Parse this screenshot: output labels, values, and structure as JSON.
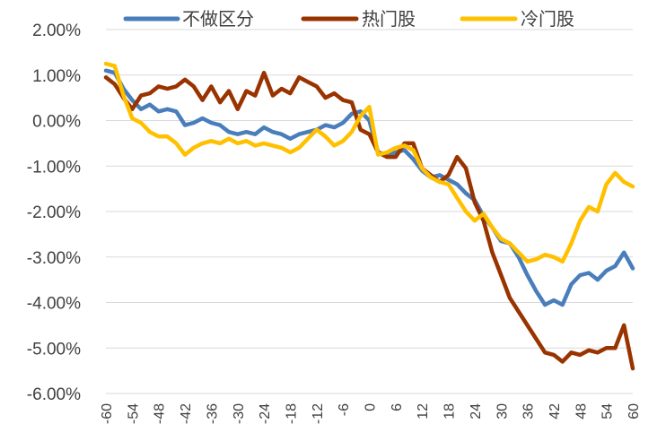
{
  "chart_data": {
    "type": "line",
    "title": "",
    "xlabel": "",
    "ylabel": "",
    "xlim": [
      -60,
      60
    ],
    "ylim": [
      -6.0,
      2.0
    ],
    "x_ticks": [
      "-60",
      "-54",
      "-48",
      "-42",
      "-36",
      "-30",
      "-24",
      "-18",
      "-12",
      "-6",
      "0",
      "6",
      "12",
      "18",
      "24",
      "30",
      "36",
      "42",
      "48",
      "54",
      "60"
    ],
    "y_ticks": [
      "2.00%",
      "1.00%",
      "0.00%",
      "-1.00%",
      "-2.00%",
      "-3.00%",
      "-4.00%",
      "-5.00%",
      "-6.00%"
    ],
    "grid": true,
    "legend_position": "top",
    "series": [
      {
        "name": "不做区分",
        "color": "#4A7EBB",
        "points": [
          [
            -60,
            1.1
          ],
          [
            -58,
            1.05
          ],
          [
            -56,
            0.7
          ],
          [
            -54,
            0.45
          ],
          [
            -52,
            0.25
          ],
          [
            -50,
            0.35
          ],
          [
            -48,
            0.2
          ],
          [
            -46,
            0.25
          ],
          [
            -44,
            0.2
          ],
          [
            -42,
            -0.1
          ],
          [
            -40,
            -0.05
          ],
          [
            -38,
            0.05
          ],
          [
            -36,
            -0.05
          ],
          [
            -34,
            -0.1
          ],
          [
            -32,
            -0.25
          ],
          [
            -30,
            -0.3
          ],
          [
            -28,
            -0.25
          ],
          [
            -26,
            -0.3
          ],
          [
            -24,
            -0.15
          ],
          [
            -22,
            -0.25
          ],
          [
            -20,
            -0.3
          ],
          [
            -18,
            -0.4
          ],
          [
            -16,
            -0.3
          ],
          [
            -14,
            -0.25
          ],
          [
            -12,
            -0.2
          ],
          [
            -10,
            -0.1
          ],
          [
            -8,
            -0.15
          ],
          [
            -6,
            -0.05
          ],
          [
            -4,
            0.15
          ],
          [
            -2,
            0.2
          ],
          [
            0,
            0.0
          ],
          [
            2,
            -0.7
          ],
          [
            4,
            -0.75
          ],
          [
            6,
            -0.7
          ],
          [
            8,
            -0.65
          ],
          [
            10,
            -0.85
          ],
          [
            12,
            -1.1
          ],
          [
            14,
            -1.25
          ],
          [
            16,
            -1.2
          ],
          [
            18,
            -1.3
          ],
          [
            20,
            -1.4
          ],
          [
            22,
            -1.6
          ],
          [
            24,
            -1.75
          ],
          [
            26,
            -2.1
          ],
          [
            28,
            -2.35
          ],
          [
            30,
            -2.65
          ],
          [
            32,
            -2.7
          ],
          [
            34,
            -3.0
          ],
          [
            36,
            -3.4
          ],
          [
            38,
            -3.75
          ],
          [
            40,
            -4.05
          ],
          [
            42,
            -3.95
          ],
          [
            44,
            -4.05
          ],
          [
            46,
            -3.6
          ],
          [
            48,
            -3.4
          ],
          [
            50,
            -3.35
          ],
          [
            52,
            -3.5
          ],
          [
            54,
            -3.3
          ],
          [
            56,
            -3.2
          ],
          [
            58,
            -2.9
          ],
          [
            60,
            -3.25
          ]
        ]
      },
      {
        "name": "热门股",
        "color": "#993300",
        "points": [
          [
            -60,
            0.95
          ],
          [
            -58,
            0.8
          ],
          [
            -56,
            0.5
          ],
          [
            -54,
            0.25
          ],
          [
            -52,
            0.55
          ],
          [
            -50,
            0.6
          ],
          [
            -48,
            0.75
          ],
          [
            -46,
            0.7
          ],
          [
            -44,
            0.75
          ],
          [
            -42,
            0.9
          ],
          [
            -40,
            0.75
          ],
          [
            -38,
            0.45
          ],
          [
            -36,
            0.75
          ],
          [
            -34,
            0.4
          ],
          [
            -32,
            0.65
          ],
          [
            -30,
            0.25
          ],
          [
            -28,
            0.65
          ],
          [
            -26,
            0.55
          ],
          [
            -24,
            1.05
          ],
          [
            -22,
            0.55
          ],
          [
            -20,
            0.7
          ],
          [
            -18,
            0.6
          ],
          [
            -16,
            0.95
          ],
          [
            -14,
            0.85
          ],
          [
            -12,
            0.75
          ],
          [
            -10,
            0.5
          ],
          [
            -8,
            0.6
          ],
          [
            -6,
            0.45
          ],
          [
            -4,
            0.4
          ],
          [
            -2,
            -0.2
          ],
          [
            0,
            -0.3
          ],
          [
            2,
            -0.7
          ],
          [
            4,
            -0.8
          ],
          [
            6,
            -0.8
          ],
          [
            8,
            -0.5
          ],
          [
            10,
            -0.5
          ],
          [
            12,
            -1.05
          ],
          [
            14,
            -1.2
          ],
          [
            16,
            -1.35
          ],
          [
            18,
            -1.2
          ],
          [
            20,
            -0.8
          ],
          [
            22,
            -1.05
          ],
          [
            24,
            -1.8
          ],
          [
            26,
            -2.2
          ],
          [
            28,
            -2.9
          ],
          [
            30,
            -3.4
          ],
          [
            32,
            -3.9
          ],
          [
            34,
            -4.2
          ],
          [
            36,
            -4.5
          ],
          [
            38,
            -4.8
          ],
          [
            40,
            -5.1
          ],
          [
            42,
            -5.15
          ],
          [
            44,
            -5.3
          ],
          [
            46,
            -5.1
          ],
          [
            48,
            -5.15
          ],
          [
            50,
            -5.05
          ],
          [
            52,
            -5.1
          ],
          [
            54,
            -5.0
          ],
          [
            56,
            -5.0
          ],
          [
            58,
            -4.5
          ],
          [
            60,
            -5.45
          ]
        ]
      },
      {
        "name": "冷门股",
        "color": "#FFC000",
        "points": [
          [
            -60,
            1.25
          ],
          [
            -58,
            1.2
          ],
          [
            -56,
            0.55
          ],
          [
            -54,
            0.05
          ],
          [
            -52,
            -0.05
          ],
          [
            -50,
            -0.25
          ],
          [
            -48,
            -0.35
          ],
          [
            -46,
            -0.35
          ],
          [
            -44,
            -0.5
          ],
          [
            -42,
            -0.75
          ],
          [
            -40,
            -0.6
          ],
          [
            -38,
            -0.5
          ],
          [
            -36,
            -0.45
          ],
          [
            -34,
            -0.5
          ],
          [
            -32,
            -0.4
          ],
          [
            -30,
            -0.5
          ],
          [
            -28,
            -0.45
          ],
          [
            -26,
            -0.55
          ],
          [
            -24,
            -0.5
          ],
          [
            -22,
            -0.55
          ],
          [
            -20,
            -0.6
          ],
          [
            -18,
            -0.7
          ],
          [
            -16,
            -0.6
          ],
          [
            -14,
            -0.4
          ],
          [
            -12,
            -0.2
          ],
          [
            -10,
            -0.35
          ],
          [
            -8,
            -0.55
          ],
          [
            -6,
            -0.45
          ],
          [
            -4,
            -0.25
          ],
          [
            -2,
            0.1
          ],
          [
            0,
            0.3
          ],
          [
            2,
            -0.75
          ],
          [
            4,
            -0.7
          ],
          [
            6,
            -0.6
          ],
          [
            8,
            -0.55
          ],
          [
            10,
            -0.65
          ],
          [
            12,
            -1.05
          ],
          [
            14,
            -1.25
          ],
          [
            16,
            -1.35
          ],
          [
            18,
            -1.4
          ],
          [
            20,
            -1.7
          ],
          [
            22,
            -2.0
          ],
          [
            24,
            -2.2
          ],
          [
            26,
            -2.05
          ],
          [
            28,
            -2.35
          ],
          [
            30,
            -2.6
          ],
          [
            32,
            -2.7
          ],
          [
            34,
            -2.9
          ],
          [
            36,
            -3.1
          ],
          [
            38,
            -3.05
          ],
          [
            40,
            -2.95
          ],
          [
            42,
            -3.0
          ],
          [
            44,
            -3.1
          ],
          [
            46,
            -2.7
          ],
          [
            48,
            -2.2
          ],
          [
            50,
            -1.9
          ],
          [
            52,
            -2.0
          ],
          [
            54,
            -1.4
          ],
          [
            56,
            -1.15
          ],
          [
            58,
            -1.35
          ],
          [
            60,
            -1.45
          ]
        ]
      }
    ]
  }
}
